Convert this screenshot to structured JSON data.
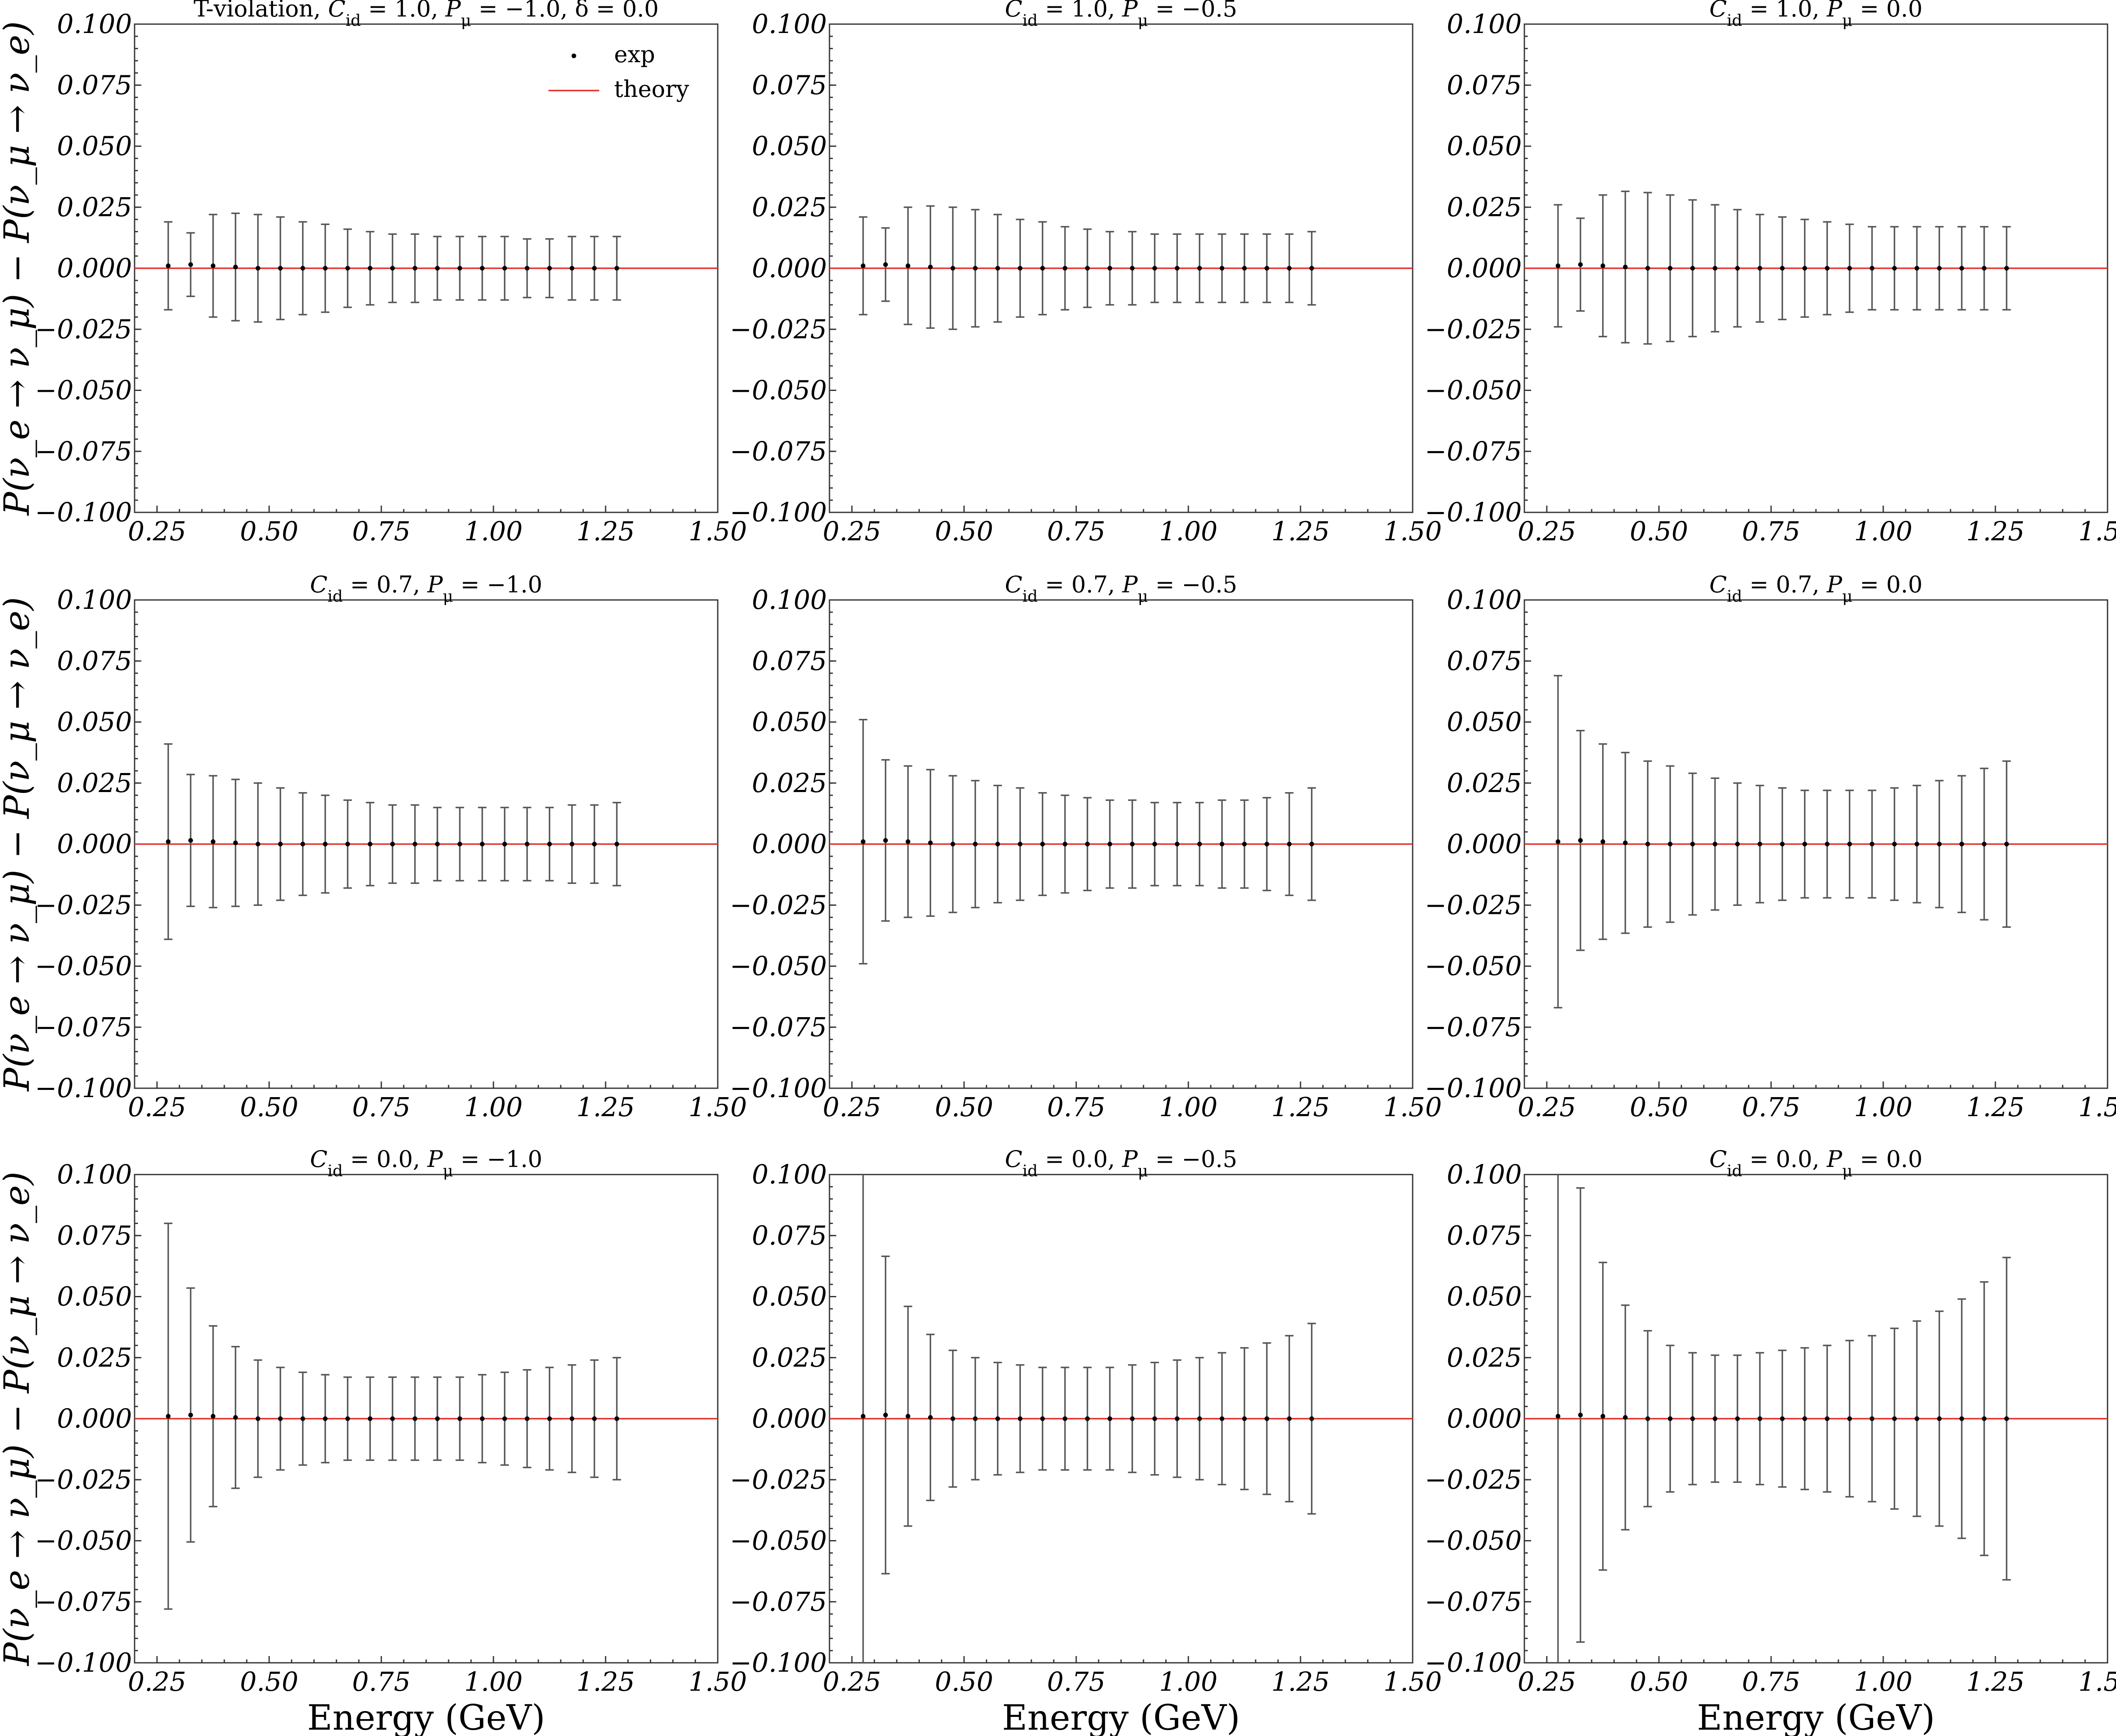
{
  "chart_data": [
    {
      "type": "scatter",
      "title": "T-violation, C_id = 1.0,  P_μ = −1.0,  δ = 0.0",
      "ylabel": "P(ν_e → ν_μ) − P(ν_μ → ν_e)",
      "xlabel": "",
      "xlim": [
        0.2,
        1.5
      ],
      "ylim": [
        -0.1,
        0.1
      ],
      "grid": false,
      "legend": {
        "position": "top-right",
        "entries": [
          {
            "name": "exp",
            "marker": "point"
          },
          {
            "name": "theory",
            "marker": "line",
            "color": "#e0302a"
          }
        ]
      },
      "series": [
        {
          "name": "exp",
          "x": [
            0.275,
            0.325,
            0.375,
            0.425,
            0.475,
            0.525,
            0.575,
            0.625,
            0.675,
            0.725,
            0.775,
            0.825,
            0.875,
            0.925,
            0.975,
            1.025,
            1.075,
            1.125,
            1.175,
            1.225,
            1.275
          ],
          "y": [
            0.001,
            0.0015,
            0.001,
            0.0005,
            0,
            0,
            0,
            0,
            0,
            0,
            0,
            0,
            0,
            0,
            0,
            0,
            0,
            0,
            0,
            0,
            0
          ],
          "yerr": [
            0.018,
            0.013,
            0.021,
            0.022,
            0.022,
            0.021,
            0.019,
            0.018,
            0.016,
            0.015,
            0.014,
            0.014,
            0.013,
            0.013,
            0.013,
            0.013,
            0.012,
            0.012,
            0.013,
            0.013,
            0.013
          ]
        },
        {
          "name": "theory",
          "x": [
            0.2,
            1.5
          ],
          "y": [
            0,
            0
          ]
        }
      ]
    },
    {
      "type": "scatter",
      "title": "C_id = 1.0,  P_μ = −0.5",
      "ylabel": "",
      "xlabel": "",
      "xlim": [
        0.2,
        1.5
      ],
      "ylim": [
        -0.1,
        0.1
      ],
      "grid": false,
      "series": [
        {
          "name": "exp",
          "x": [
            0.275,
            0.325,
            0.375,
            0.425,
            0.475,
            0.525,
            0.575,
            0.625,
            0.675,
            0.725,
            0.775,
            0.825,
            0.875,
            0.925,
            0.975,
            1.025,
            1.075,
            1.125,
            1.175,
            1.225,
            1.275
          ],
          "y": [
            0.001,
            0.0015,
            0.001,
            0.0005,
            0,
            0,
            0,
            0,
            0,
            0,
            0,
            0,
            0,
            0,
            0,
            0,
            0,
            0,
            0,
            0,
            0
          ],
          "yerr": [
            0.02,
            0.015,
            0.024,
            0.025,
            0.025,
            0.024,
            0.022,
            0.02,
            0.019,
            0.017,
            0.016,
            0.015,
            0.015,
            0.014,
            0.014,
            0.014,
            0.014,
            0.014,
            0.014,
            0.014,
            0.015
          ]
        },
        {
          "name": "theory",
          "x": [
            0.2,
            1.5
          ],
          "y": [
            0,
            0
          ]
        }
      ]
    },
    {
      "type": "scatter",
      "title": "C_id = 1.0,  P_μ = 0.0",
      "ylabel": "",
      "xlabel": "",
      "xlim": [
        0.2,
        1.5
      ],
      "ylim": [
        -0.1,
        0.1
      ],
      "grid": false,
      "series": [
        {
          "name": "exp",
          "x": [
            0.275,
            0.325,
            0.375,
            0.425,
            0.475,
            0.525,
            0.575,
            0.625,
            0.675,
            0.725,
            0.775,
            0.825,
            0.875,
            0.925,
            0.975,
            1.025,
            1.075,
            1.125,
            1.175,
            1.225,
            1.275
          ],
          "y": [
            0.001,
            0.0015,
            0.001,
            0.0005,
            0,
            0,
            0,
            0,
            0,
            0,
            0,
            0,
            0,
            0,
            0,
            0,
            0,
            0,
            0,
            0,
            0
          ],
          "yerr": [
            0.025,
            0.019,
            0.029,
            0.031,
            0.031,
            0.03,
            0.028,
            0.026,
            0.024,
            0.022,
            0.021,
            0.02,
            0.019,
            0.018,
            0.017,
            0.017,
            0.017,
            0.017,
            0.017,
            0.017,
            0.017
          ]
        },
        {
          "name": "theory",
          "x": [
            0.2,
            1.5
          ],
          "y": [
            0,
            0
          ]
        }
      ]
    },
    {
      "type": "scatter",
      "title": "C_id = 0.7,  P_μ = −1.0",
      "ylabel": "P(ν_e → ν_μ) − P(ν_μ → ν_e)",
      "xlabel": "",
      "xlim": [
        0.2,
        1.5
      ],
      "ylim": [
        -0.1,
        0.1
      ],
      "grid": false,
      "series": [
        {
          "name": "exp",
          "x": [
            0.275,
            0.325,
            0.375,
            0.425,
            0.475,
            0.525,
            0.575,
            0.625,
            0.675,
            0.725,
            0.775,
            0.825,
            0.875,
            0.925,
            0.975,
            1.025,
            1.075,
            1.125,
            1.175,
            1.225,
            1.275
          ],
          "y": [
            0.001,
            0.0015,
            0.001,
            0.0005,
            0,
            0,
            0,
            0,
            0,
            0,
            0,
            0,
            0,
            0,
            0,
            0,
            0,
            0,
            0,
            0,
            0
          ],
          "yerr": [
            0.04,
            0.027,
            0.027,
            0.026,
            0.025,
            0.023,
            0.021,
            0.02,
            0.018,
            0.017,
            0.016,
            0.016,
            0.015,
            0.015,
            0.015,
            0.015,
            0.015,
            0.015,
            0.016,
            0.016,
            0.017
          ]
        },
        {
          "name": "theory",
          "x": [
            0.2,
            1.5
          ],
          "y": [
            0,
            0
          ]
        }
      ]
    },
    {
      "type": "scatter",
      "title": "C_id = 0.7,  P_μ = −0.5",
      "ylabel": "",
      "xlabel": "",
      "xlim": [
        0.2,
        1.5
      ],
      "ylim": [
        -0.1,
        0.1
      ],
      "grid": false,
      "series": [
        {
          "name": "exp",
          "x": [
            0.275,
            0.325,
            0.375,
            0.425,
            0.475,
            0.525,
            0.575,
            0.625,
            0.675,
            0.725,
            0.775,
            0.825,
            0.875,
            0.925,
            0.975,
            1.025,
            1.075,
            1.125,
            1.175,
            1.225,
            1.275
          ],
          "y": [
            0.001,
            0.0015,
            0.001,
            0.0005,
            0,
            0,
            0,
            0,
            0,
            0,
            0,
            0,
            0,
            0,
            0,
            0,
            0,
            0,
            0,
            0,
            0
          ],
          "yerr": [
            0.05,
            0.033,
            0.031,
            0.03,
            0.028,
            0.026,
            0.024,
            0.023,
            0.021,
            0.02,
            0.019,
            0.018,
            0.018,
            0.017,
            0.017,
            0.017,
            0.018,
            0.018,
            0.019,
            0.021,
            0.023
          ]
        },
        {
          "name": "theory",
          "x": [
            0.2,
            1.5
          ],
          "y": [
            0,
            0
          ]
        }
      ]
    },
    {
      "type": "scatter",
      "title": "C_id = 0.7,  P_μ = 0.0",
      "ylabel": "",
      "xlabel": "",
      "xlim": [
        0.2,
        1.5
      ],
      "ylim": [
        -0.1,
        0.1
      ],
      "grid": false,
      "series": [
        {
          "name": "exp",
          "x": [
            0.275,
            0.325,
            0.375,
            0.425,
            0.475,
            0.525,
            0.575,
            0.625,
            0.675,
            0.725,
            0.775,
            0.825,
            0.875,
            0.925,
            0.975,
            1.025,
            1.075,
            1.125,
            1.175,
            1.225,
            1.275
          ],
          "y": [
            0.001,
            0.0015,
            0.001,
            0.0005,
            0,
            0,
            0,
            0,
            0,
            0,
            0,
            0,
            0,
            0,
            0,
            0,
            0,
            0,
            0,
            0,
            0
          ],
          "yerr": [
            0.068,
            0.045,
            0.04,
            0.037,
            0.034,
            0.032,
            0.029,
            0.027,
            0.025,
            0.024,
            0.023,
            0.022,
            0.022,
            0.022,
            0.022,
            0.023,
            0.024,
            0.026,
            0.028,
            0.031,
            0.034
          ]
        },
        {
          "name": "theory",
          "x": [
            0.2,
            1.5
          ],
          "y": [
            0,
            0
          ]
        }
      ]
    },
    {
      "type": "scatter",
      "title": "C_id = 0.0,  P_μ = −1.0",
      "ylabel": "P(ν_e → ν_μ) − P(ν_μ → ν_e)",
      "xlabel": "Energy (GeV)",
      "xlim": [
        0.2,
        1.5
      ],
      "ylim": [
        -0.1,
        0.1
      ],
      "grid": false,
      "series": [
        {
          "name": "exp",
          "x": [
            0.275,
            0.325,
            0.375,
            0.425,
            0.475,
            0.525,
            0.575,
            0.625,
            0.675,
            0.725,
            0.775,
            0.825,
            0.875,
            0.925,
            0.975,
            1.025,
            1.075,
            1.125,
            1.175,
            1.225,
            1.275
          ],
          "y": [
            0.001,
            0.0015,
            0.001,
            0.0005,
            0,
            0,
            0,
            0,
            0,
            0,
            0,
            0,
            0,
            0,
            0,
            0,
            0,
            0,
            0,
            0,
            0
          ],
          "yerr": [
            0.079,
            0.052,
            0.037,
            0.029,
            0.024,
            0.021,
            0.019,
            0.018,
            0.017,
            0.017,
            0.017,
            0.017,
            0.017,
            0.017,
            0.018,
            0.019,
            0.02,
            0.021,
            0.022,
            0.024,
            0.025
          ]
        },
        {
          "name": "theory",
          "x": [
            0.2,
            1.5
          ],
          "y": [
            0,
            0
          ]
        }
      ]
    },
    {
      "type": "scatter",
      "title": "C_id = 0.0,  P_μ = −0.5",
      "ylabel": "",
      "xlabel": "Energy (GeV)",
      "xlim": [
        0.2,
        1.5
      ],
      "ylim": [
        -0.1,
        0.1
      ],
      "grid": false,
      "series": [
        {
          "name": "exp",
          "x": [
            0.275,
            0.325,
            0.375,
            0.425,
            0.475,
            0.525,
            0.575,
            0.625,
            0.675,
            0.725,
            0.775,
            0.825,
            0.875,
            0.925,
            0.975,
            1.025,
            1.075,
            1.125,
            1.175,
            1.225,
            1.275
          ],
          "y": [
            0.001,
            0.0015,
            0.001,
            0.0005,
            0,
            0,
            0,
            0,
            0,
            0,
            0,
            0,
            0,
            0,
            0,
            0,
            0,
            0,
            0,
            0,
            0
          ],
          "yerr": [
            0.11,
            0.065,
            0.045,
            0.034,
            0.028,
            0.025,
            0.023,
            0.022,
            0.021,
            0.021,
            0.021,
            0.021,
            0.022,
            0.023,
            0.024,
            0.025,
            0.027,
            0.029,
            0.031,
            0.034,
            0.039
          ]
        },
        {
          "name": "theory",
          "x": [
            0.2,
            1.5
          ],
          "y": [
            0,
            0
          ]
        }
      ]
    },
    {
      "type": "scatter",
      "title": "C_id = 0.0,  P_μ = 0.0",
      "ylabel": "",
      "xlabel": "Energy (GeV)",
      "xlim": [
        0.2,
        1.5
      ],
      "ylim": [
        -0.1,
        0.1
      ],
      "grid": false,
      "series": [
        {
          "name": "exp",
          "x": [
            0.275,
            0.325,
            0.375,
            0.425,
            0.475,
            0.525,
            0.575,
            0.625,
            0.675,
            0.725,
            0.775,
            0.825,
            0.875,
            0.925,
            0.975,
            1.025,
            1.075,
            1.125,
            1.175,
            1.225,
            1.275
          ],
          "y": [
            0.001,
            0.0015,
            0.001,
            0.0005,
            0,
            0,
            0,
            0,
            0,
            0,
            0,
            0,
            0,
            0,
            0,
            0,
            0,
            0,
            0,
            0,
            0
          ],
          "yerr": [
            0.15,
            0.093,
            0.063,
            0.046,
            0.036,
            0.03,
            0.027,
            0.026,
            0.026,
            0.027,
            0.028,
            0.029,
            0.03,
            0.032,
            0.034,
            0.037,
            0.04,
            0.044,
            0.049,
            0.056,
            0.066
          ]
        },
        {
          "name": "theory",
          "x": [
            0.2,
            1.5
          ],
          "y": [
            0,
            0
          ]
        }
      ]
    }
  ],
  "axes": {
    "yticks": [
      -0.1,
      -0.075,
      -0.05,
      -0.025,
      0.0,
      0.025,
      0.05,
      0.075,
      0.1
    ],
    "ytick_labels": [
      "−0.100",
      "−0.075",
      "−0.050",
      "−0.025",
      "0.000",
      "0.025",
      "0.050",
      "0.075",
      "0.100"
    ],
    "xticks": [
      0.25,
      0.5,
      0.75,
      1.0,
      1.25,
      1.5
    ],
    "xtick_labels": [
      "0.25",
      "0.50",
      "0.75",
      "1.00",
      "1.25",
      "1.50"
    ]
  },
  "colors": {
    "theory": "#e0302a",
    "exp": "#000000",
    "errorbar": "#555555"
  }
}
